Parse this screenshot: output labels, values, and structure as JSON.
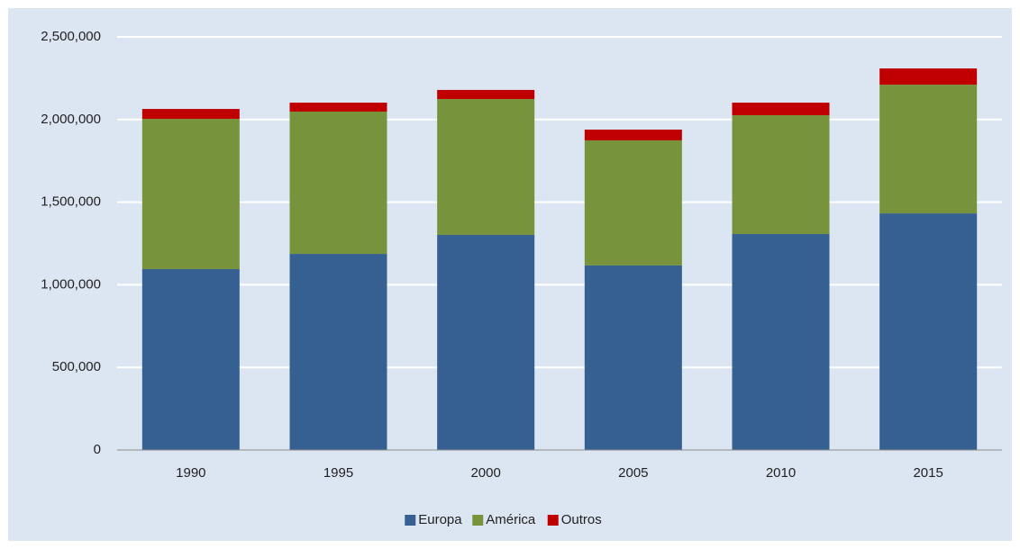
{
  "chart_data": {
    "type": "stacked_bar",
    "categories": [
      "1990",
      "1995",
      "2000",
      "2005",
      "2010",
      "2015"
    ],
    "series": [
      {
        "name": "Europa",
        "color": "#376092",
        "values": [
          1095000,
          1187000,
          1302000,
          1117000,
          1307000,
          1432000
        ]
      },
      {
        "name": "América",
        "color": "#77933c",
        "values": [
          909000,
          861000,
          822000,
          757000,
          719000,
          779000
        ]
      },
      {
        "name": "Outros",
        "color": "#c00000",
        "values": [
          60000,
          54000,
          55000,
          65000,
          76000,
          98000
        ]
      }
    ],
    "ylim": [
      0,
      2500000
    ],
    "yticks": [
      0,
      {
        "value": 500000,
        "label": "500,000"
      },
      {
        "value": 1000000,
        "label": "1,000,000"
      },
      {
        "value": 1500000,
        "label": "1,500,000"
      },
      {
        "value": 2000000,
        "label": "2,000,000"
      },
      {
        "value": 2500000,
        "label": "2,500,000"
      }
    ],
    "grid": true,
    "legend": "bottom"
  }
}
